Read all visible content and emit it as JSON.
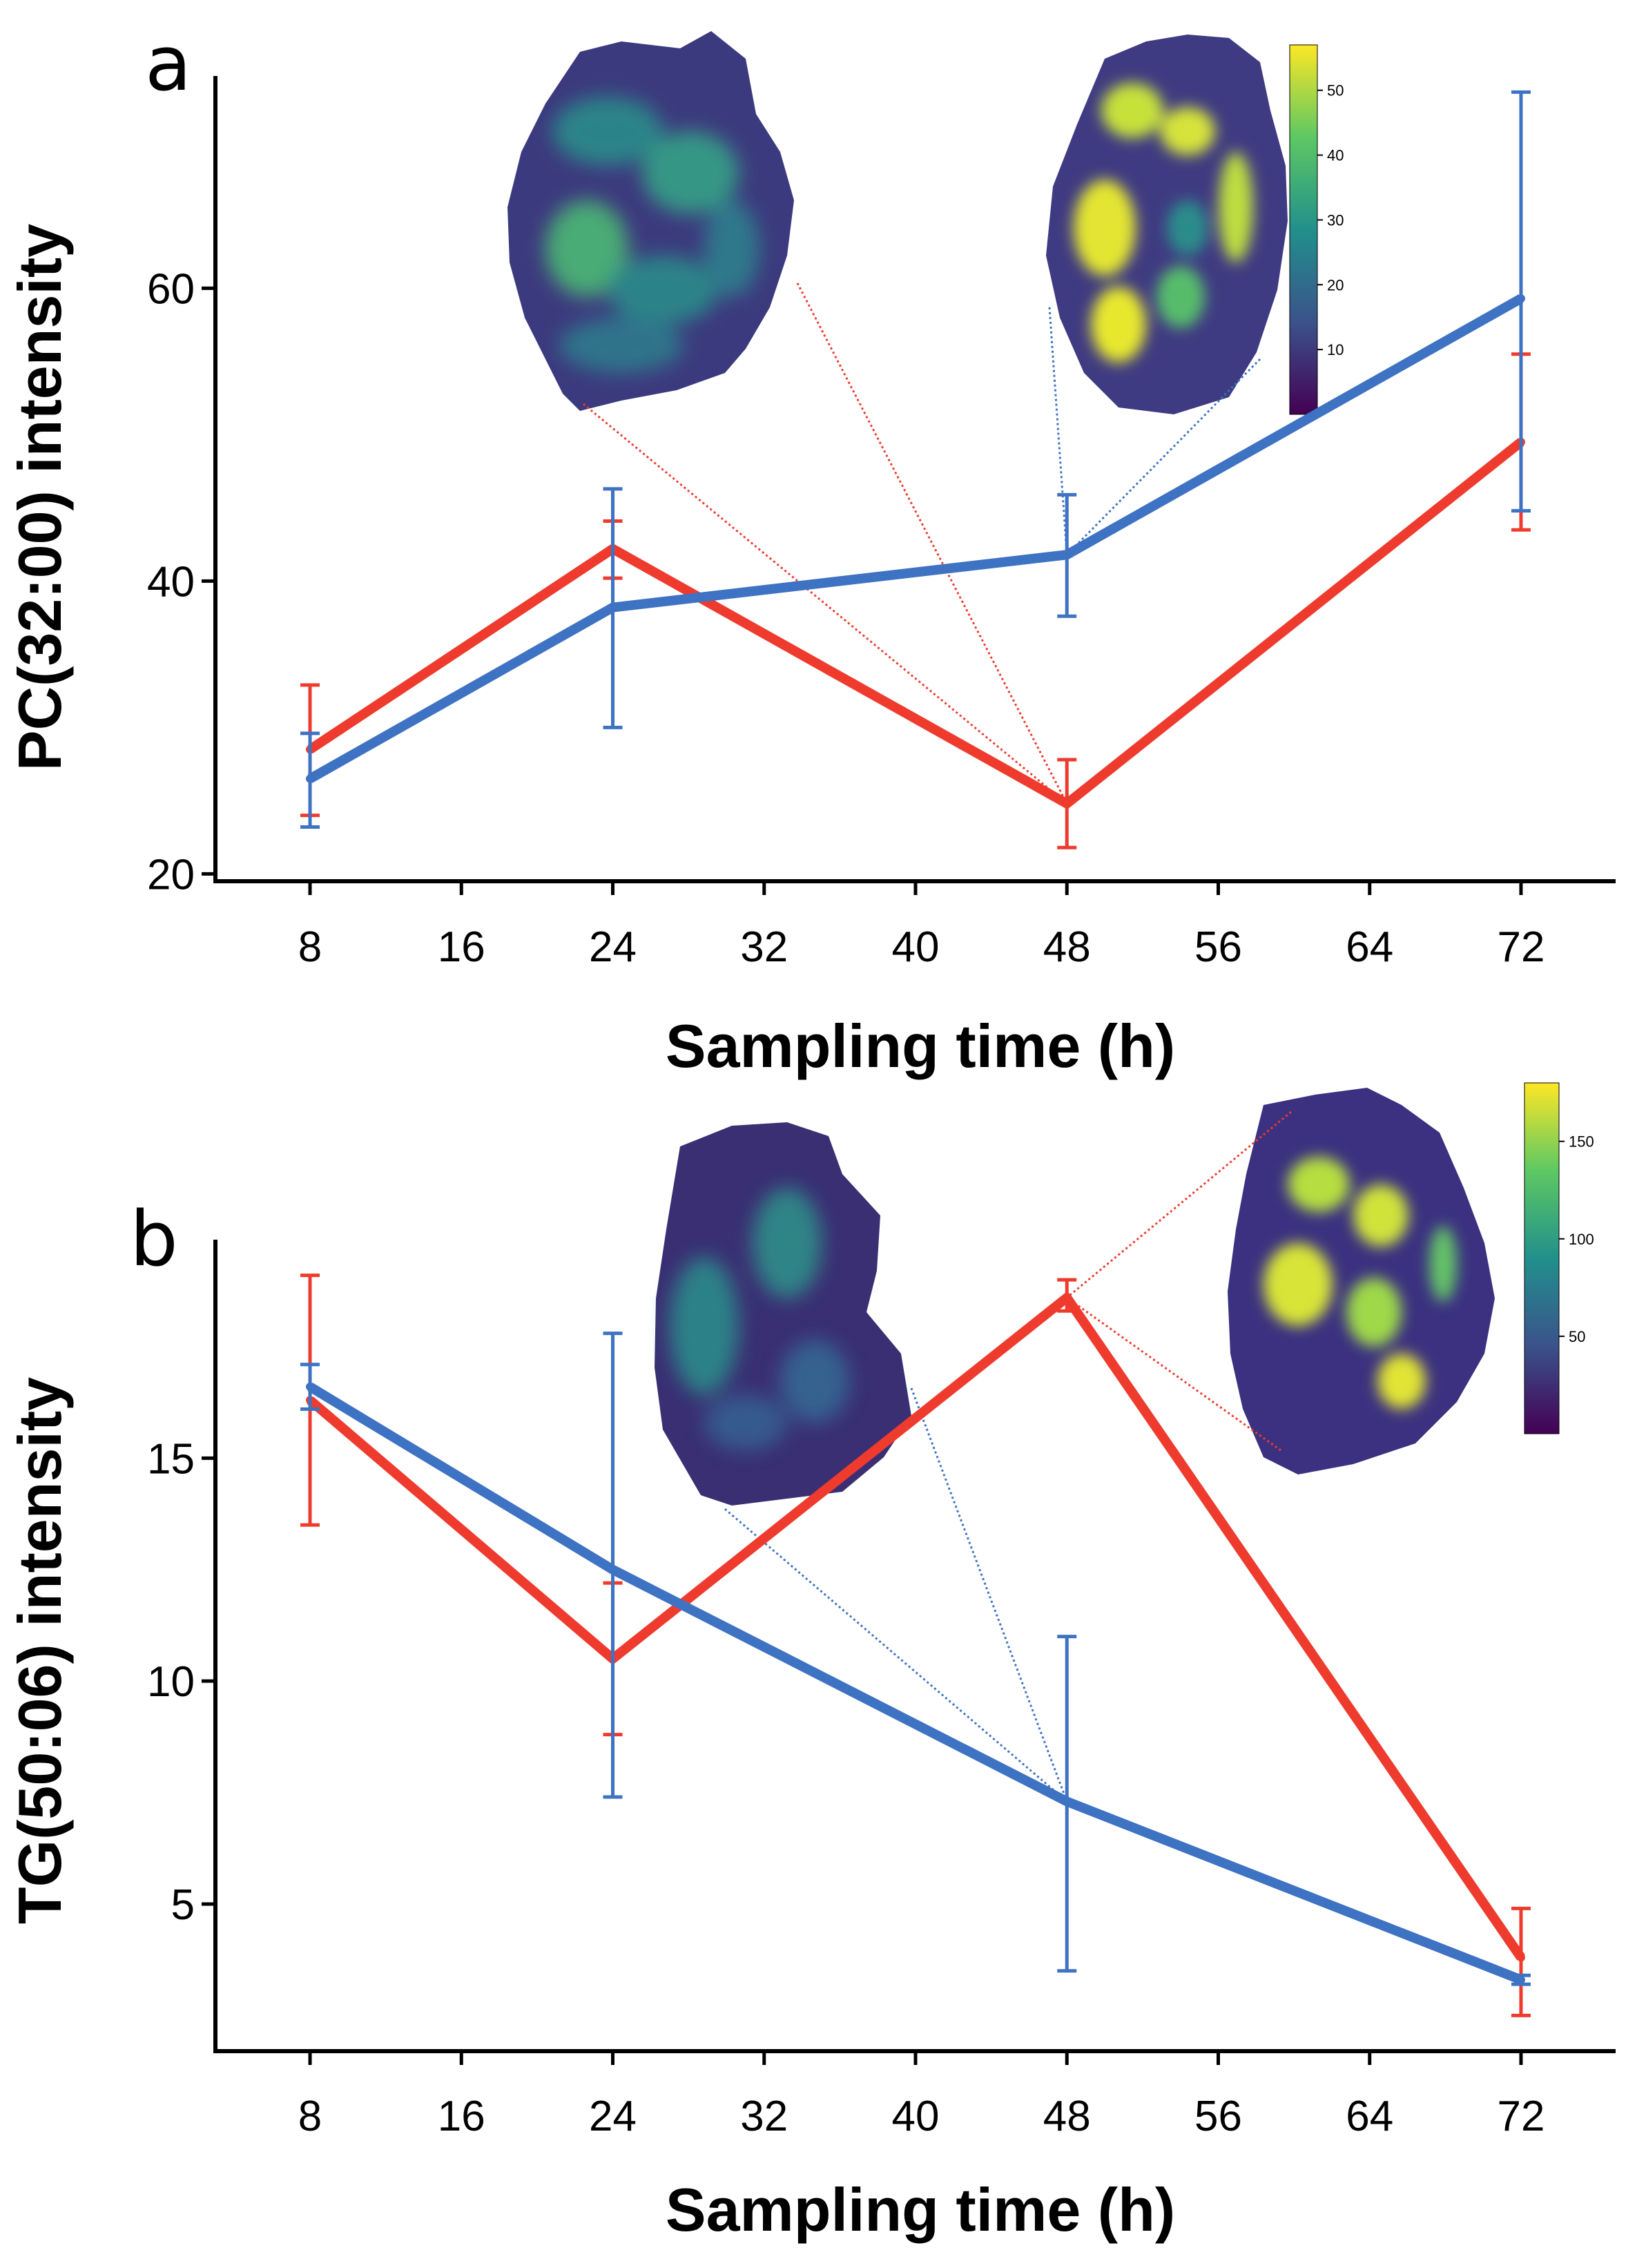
{
  "colors": {
    "red": "#EE3B2E",
    "blue": "#3E72C2"
  },
  "chart_data": [
    {
      "panel": "a",
      "type": "line",
      "xlabel": "Sampling time (h)",
      "ylabel": "PC(32:00) intensity",
      "x": [
        8,
        24,
        48,
        72
      ],
      "xticks": [
        8,
        16,
        24,
        32,
        40,
        48,
        56,
        64,
        72
      ],
      "yticks": [
        20,
        40,
        60
      ],
      "xlim": [
        3,
        77
      ],
      "ylim": [
        19.5,
        74.5
      ],
      "series": [
        {
          "name": "red",
          "color": "#EE3B2E",
          "values": [
            28.5,
            42.2,
            24.8,
            49.5
          ],
          "err_low": [
            24.0,
            40.2,
            21.8,
            43.5
          ],
          "err_high": [
            32.9,
            44.1,
            27.8,
            55.5
          ]
        },
        {
          "name": "blue",
          "color": "#3E72C2",
          "values": [
            26.5,
            38.2,
            41.8,
            59.3
          ],
          "err_low": [
            23.2,
            30.0,
            37.6,
            44.8
          ],
          "err_high": [
            29.6,
            46.3,
            45.9,
            73.4
          ]
        }
      ],
      "insets": [
        {
          "position": "left",
          "colorbar": null,
          "lines_to": "red@48"
        },
        {
          "position": "right",
          "colorbar": {
            "ticks": [
              10,
              20,
              30,
              40,
              50
            ]
          },
          "lines_to": "blue@48"
        }
      ]
    },
    {
      "panel": "b",
      "type": "line",
      "xlabel": "Sampling time (h)",
      "ylabel": "TG(50:06) intensity",
      "x": [
        8,
        24,
        48,
        72
      ],
      "xticks": [
        8,
        16,
        24,
        32,
        40,
        48,
        56,
        64,
        72
      ],
      "yticks": [
        5,
        10,
        15
      ],
      "xlim": [
        3,
        77
      ],
      "ylim": [
        1.7,
        19.9
      ],
      "series": [
        {
          "name": "red",
          "color": "#EE3B2E",
          "values": [
            16.3,
            10.5,
            18.6,
            3.8
          ],
          "err_low": [
            13.5,
            8.8,
            18.3,
            2.5
          ],
          "err_high": [
            19.1,
            12.2,
            19.0,
            4.9
          ]
        },
        {
          "name": "blue",
          "color": "#3E72C2",
          "values": [
            16.6,
            12.5,
            7.3,
            3.3
          ],
          "err_low": [
            16.1,
            7.4,
            3.5,
            3.2
          ],
          "err_high": [
            17.1,
            17.8,
            11.0,
            3.4
          ]
        }
      ],
      "insets": [
        {
          "position": "left",
          "colorbar": null,
          "lines_to": "blue@48"
        },
        {
          "position": "right",
          "colorbar": {
            "ticks": [
              50,
              100,
              150
            ]
          },
          "lines_to": "red@48"
        }
      ]
    }
  ]
}
